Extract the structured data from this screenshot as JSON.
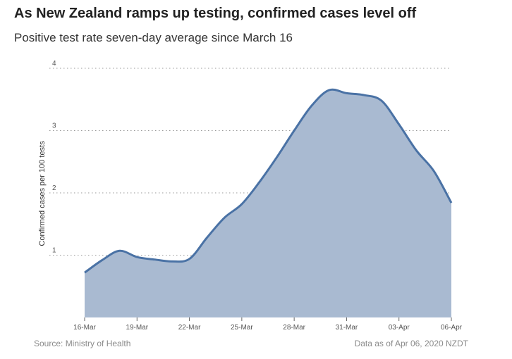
{
  "header": {
    "title": "As New Zealand ramps up testing, confirmed cases level off",
    "subtitle": "Positive test rate seven-day average since March 16"
  },
  "footer": {
    "source": "Source: Ministry of Health",
    "as_of": "Data as of Apr 06, 2020 NZDT"
  },
  "colors": {
    "line": "#4a72a5",
    "fill": "#a9bad1",
    "grid": "#9a9a9a"
  },
  "chart_data": {
    "type": "area",
    "title": "As New Zealand ramps up testing, confirmed cases level off",
    "subtitle": "Positive test rate seven-day average since March 16",
    "ylabel": "Confirmed cases per 100 tests",
    "xlabel": "",
    "ylim": [
      0,
      4
    ],
    "yticks": [
      "1",
      "2",
      "3",
      "4"
    ],
    "x_ticks": [
      "16-Mar",
      "19-Mar",
      "22-Mar",
      "25-Mar",
      "28-Mar",
      "31-Mar",
      "03-Apr",
      "06-Apr"
    ],
    "x": [
      "16-Mar",
      "17-Mar",
      "18-Mar",
      "19-Mar",
      "20-Mar",
      "21-Mar",
      "22-Mar",
      "23-Mar",
      "24-Mar",
      "25-Mar",
      "26-Mar",
      "27-Mar",
      "28-Mar",
      "29-Mar",
      "30-Mar",
      "31-Mar",
      "01-Apr",
      "02-Apr",
      "03-Apr",
      "04-Apr",
      "05-Apr",
      "06-Apr"
    ],
    "values": [
      0.72,
      0.92,
      1.07,
      0.97,
      0.93,
      0.9,
      0.94,
      1.28,
      1.6,
      1.82,
      2.17,
      2.57,
      3.0,
      3.4,
      3.65,
      3.6,
      3.57,
      3.48,
      3.1,
      2.68,
      2.35,
      1.84
    ],
    "grid": "horizontal dotted",
    "legend": "none"
  }
}
